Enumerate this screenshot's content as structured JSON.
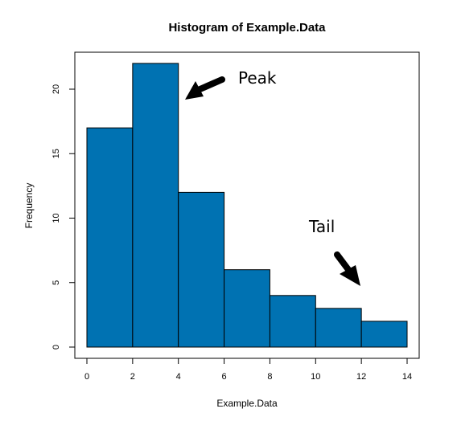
{
  "chart_data": {
    "type": "bar",
    "title": "Histogram of Example.Data",
    "xlabel": "Example.Data",
    "ylabel": "Frequency",
    "bins": [
      [
        0,
        2
      ],
      [
        2,
        4
      ],
      [
        4,
        6
      ],
      [
        6,
        8
      ],
      [
        8,
        10
      ],
      [
        10,
        12
      ],
      [
        12,
        14
      ]
    ],
    "values": [
      17,
      22,
      12,
      6,
      4,
      3,
      2
    ],
    "xlim": [
      0,
      14
    ],
    "ylim": [
      0,
      22
    ],
    "xticks": [
      "0",
      "2",
      "4",
      "6",
      "8",
      "10",
      "12",
      "14"
    ],
    "yticks": [
      "0",
      "5",
      "10",
      "15",
      "20"
    ],
    "bar_color": "#0072B2",
    "grid": false,
    "annotations": [
      {
        "text": "Peak",
        "points_to_x": 4,
        "points_to_y": 19.5
      },
      {
        "text": "Tail",
        "points_to_x": 12,
        "points_to_y": 4.5
      }
    ]
  }
}
